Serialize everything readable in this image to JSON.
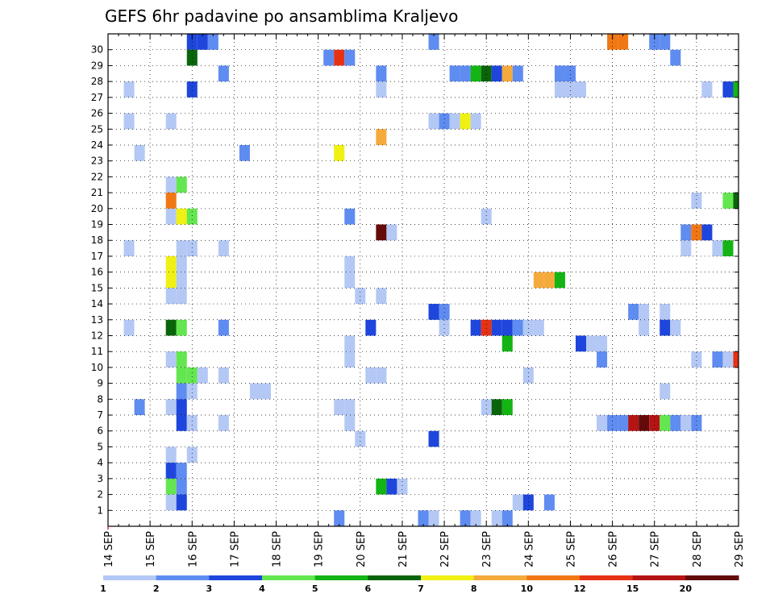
{
  "chart_data": {
    "type": "heatmap",
    "title": "GEFS 6hr padavine po ansamblima Kraljevo",
    "xlabel": "",
    "ylabel": "",
    "x_tick_labels": [
      "14 SEP",
      "15 SEP",
      "16 SEP",
      "17 SEP",
      "18 SEP",
      "19 SEP",
      "20 SEP",
      "21 SEP",
      "22 SEP",
      "23 SEP",
      "24 SEP",
      "25 SEP",
      "26 SEP",
      "27 SEP",
      "28 SEP",
      "29 SEP"
    ],
    "y_tick_labels": [
      "1",
      "2",
      "3",
      "4",
      "5",
      "6",
      "7",
      "8",
      "9",
      "10",
      "11",
      "12",
      "13",
      "14",
      "15",
      "16",
      "17",
      "18",
      "19",
      "20",
      "21",
      "22",
      "23",
      "24",
      "25",
      "26",
      "27",
      "28",
      "29",
      "30"
    ],
    "ylim": [
      0,
      30
    ],
    "time_step_hours": 6,
    "grid": true,
    "colorbar": {
      "labels": [
        "1",
        "2",
        "3",
        "4",
        "5",
        "6",
        "7",
        "8",
        "10",
        "12",
        "15",
        "20"
      ],
      "bins": [
        {
          "from": 1,
          "to": 2,
          "color": "#b4c8f5"
        },
        {
          "from": 2,
          "to": 3,
          "color": "#5f8cf0"
        },
        {
          "from": 3,
          "to": 4,
          "color": "#1e46dc"
        },
        {
          "from": 4,
          "to": 5,
          "color": "#64e650"
        },
        {
          "from": 5,
          "to": 6,
          "color": "#14b414"
        },
        {
          "from": 6,
          "to": 7,
          "color": "#0a640a"
        },
        {
          "from": 7,
          "to": 8,
          "color": "#f0f014"
        },
        {
          "from": 8,
          "to": 10,
          "color": "#f5aa3c"
        },
        {
          "from": 10,
          "to": 12,
          "color": "#f07814"
        },
        {
          "from": 12,
          "to": 15,
          "color": "#e63214"
        },
        {
          "from": 15,
          "to": 20,
          "color": "#b41414"
        },
        {
          "from": 20,
          "to": 25,
          "color": "#640a0a"
        }
      ]
    },
    "cells": [
      {
        "member": 30,
        "step": 8,
        "bin": 2
      },
      {
        "member": 30,
        "step": 9,
        "bin": 2
      },
      {
        "member": 30,
        "step": 10,
        "bin": 1
      },
      {
        "member": 30,
        "step": 31,
        "bin": 1
      },
      {
        "member": 30,
        "step": 48,
        "bin": 8
      },
      {
        "member": 30,
        "step": 49,
        "bin": 8
      },
      {
        "member": 30,
        "step": 52,
        "bin": 1
      },
      {
        "member": 30,
        "step": 53,
        "bin": 1
      },
      {
        "member": 29,
        "step": 8,
        "bin": 5
      },
      {
        "member": 29,
        "step": 21,
        "bin": 1
      },
      {
        "member": 29,
        "step": 22,
        "bin": 9
      },
      {
        "member": 29,
        "step": 23,
        "bin": 1
      },
      {
        "member": 29,
        "step": 54,
        "bin": 1
      },
      {
        "member": 28,
        "step": 11,
        "bin": 1
      },
      {
        "member": 28,
        "step": 26,
        "bin": 1
      },
      {
        "member": 28,
        "step": 33,
        "bin": 1
      },
      {
        "member": 28,
        "step": 34,
        "bin": 1
      },
      {
        "member": 28,
        "step": 35,
        "bin": 4
      },
      {
        "member": 28,
        "step": 36,
        "bin": 5
      },
      {
        "member": 28,
        "step": 37,
        "bin": 2
      },
      {
        "member": 28,
        "step": 38,
        "bin": 7
      },
      {
        "member": 28,
        "step": 39,
        "bin": 1
      },
      {
        "member": 28,
        "step": 43,
        "bin": 1
      },
      {
        "member": 28,
        "step": 44,
        "bin": 1
      },
      {
        "member": 27,
        "step": 2,
        "bin": 0
      },
      {
        "member": 27,
        "step": 8,
        "bin": 2
      },
      {
        "member": 27,
        "step": 26,
        "bin": 0
      },
      {
        "member": 27,
        "step": 43,
        "bin": 0
      },
      {
        "member": 27,
        "step": 44,
        "bin": 0
      },
      {
        "member": 27,
        "step": 45,
        "bin": 0
      },
      {
        "member": 27,
        "step": 57,
        "bin": 0
      },
      {
        "member": 27,
        "step": 59,
        "bin": 2
      },
      {
        "member": 27,
        "step": 60,
        "bin": 4
      },
      {
        "member": 25,
        "step": 2,
        "bin": 0
      },
      {
        "member": 25,
        "step": 6,
        "bin": 0
      },
      {
        "member": 25,
        "step": 31,
        "bin": 0
      },
      {
        "member": 25,
        "step": 32,
        "bin": 1
      },
      {
        "member": 25,
        "step": 33,
        "bin": 0
      },
      {
        "member": 25,
        "step": 34,
        "bin": 6
      },
      {
        "member": 25,
        "step": 35,
        "bin": 0
      },
      {
        "member": 24,
        "step": 26,
        "bin": 7
      },
      {
        "member": 23,
        "step": 3,
        "bin": 0
      },
      {
        "member": 23,
        "step": 13,
        "bin": 1
      },
      {
        "member": 23,
        "step": 22,
        "bin": 6
      },
      {
        "member": 21,
        "step": 6,
        "bin": 0
      },
      {
        "member": 21,
        "step": 7,
        "bin": 3
      },
      {
        "member": 20,
        "step": 6,
        "bin": 8
      },
      {
        "member": 20,
        "step": 56,
        "bin": 0
      },
      {
        "member": 20,
        "step": 59,
        "bin": 3
      },
      {
        "member": 20,
        "step": 60,
        "bin": 5
      },
      {
        "member": 19,
        "step": 6,
        "bin": 0
      },
      {
        "member": 19,
        "step": 7,
        "bin": 6
      },
      {
        "member": 19,
        "step": 8,
        "bin": 3
      },
      {
        "member": 19,
        "step": 23,
        "bin": 1
      },
      {
        "member": 19,
        "step": 36,
        "bin": 0
      },
      {
        "member": 18,
        "step": 26,
        "bin": 11
      },
      {
        "member": 18,
        "step": 27,
        "bin": 0
      },
      {
        "member": 18,
        "step": 55,
        "bin": 1
      },
      {
        "member": 18,
        "step": 56,
        "bin": 8
      },
      {
        "member": 18,
        "step": 57,
        "bin": 2
      },
      {
        "member": 17,
        "step": 2,
        "bin": 0
      },
      {
        "member": 17,
        "step": 7,
        "bin": 0
      },
      {
        "member": 17,
        "step": 8,
        "bin": 0
      },
      {
        "member": 17,
        "step": 11,
        "bin": 0
      },
      {
        "member": 17,
        "step": 55,
        "bin": 0
      },
      {
        "member": 17,
        "step": 58,
        "bin": 0
      },
      {
        "member": 17,
        "step": 59,
        "bin": 4
      },
      {
        "member": 16,
        "step": 6,
        "bin": 6
      },
      {
        "member": 16,
        "step": 7,
        "bin": 0
      },
      {
        "member": 16,
        "step": 23,
        "bin": 0
      },
      {
        "member": 15,
        "step": 6,
        "bin": 6
      },
      {
        "member": 15,
        "step": 7,
        "bin": 0
      },
      {
        "member": 15,
        "step": 23,
        "bin": 0
      },
      {
        "member": 15,
        "step": 41,
        "bin": 7
      },
      {
        "member": 15,
        "step": 42,
        "bin": 7
      },
      {
        "member": 15,
        "step": 43,
        "bin": 4
      },
      {
        "member": 14,
        "step": 6,
        "bin": 0
      },
      {
        "member": 14,
        "step": 7,
        "bin": 0
      },
      {
        "member": 14,
        "step": 24,
        "bin": 0
      },
      {
        "member": 14,
        "step": 26,
        "bin": 0
      },
      {
        "member": 13,
        "step": 31,
        "bin": 2
      },
      {
        "member": 13,
        "step": 32,
        "bin": 1
      },
      {
        "member": 13,
        "step": 50,
        "bin": 1
      },
      {
        "member": 13,
        "step": 51,
        "bin": 0
      },
      {
        "member": 13,
        "step": 53,
        "bin": 0
      },
      {
        "member": 12,
        "step": 2,
        "bin": 0
      },
      {
        "member": 12,
        "step": 6,
        "bin": 5
      },
      {
        "member": 12,
        "step": 7,
        "bin": 3
      },
      {
        "member": 12,
        "step": 11,
        "bin": 1
      },
      {
        "member": 12,
        "step": 25,
        "bin": 2
      },
      {
        "member": 12,
        "step": 32,
        "bin": 0
      },
      {
        "member": 12,
        "step": 35,
        "bin": 2
      },
      {
        "member": 12,
        "step": 36,
        "bin": 9
      },
      {
        "member": 12,
        "step": 37,
        "bin": 2
      },
      {
        "member": 12,
        "step": 38,
        "bin": 2
      },
      {
        "member": 12,
        "step": 39,
        "bin": 1
      },
      {
        "member": 12,
        "step": 40,
        "bin": 0
      },
      {
        "member": 12,
        "step": 41,
        "bin": 0
      },
      {
        "member": 12,
        "step": 51,
        "bin": 0
      },
      {
        "member": 12,
        "step": 53,
        "bin": 2
      },
      {
        "member": 12,
        "step": 54,
        "bin": 0
      },
      {
        "member": 11,
        "step": 23,
        "bin": 0
      },
      {
        "member": 11,
        "step": 38,
        "bin": 4
      },
      {
        "member": 11,
        "step": 45,
        "bin": 2
      },
      {
        "member": 11,
        "step": 46,
        "bin": 0
      },
      {
        "member": 11,
        "step": 47,
        "bin": 0
      },
      {
        "member": 10,
        "step": 6,
        "bin": 0
      },
      {
        "member": 10,
        "step": 7,
        "bin": 3
      },
      {
        "member": 10,
        "step": 23,
        "bin": 0
      },
      {
        "member": 10,
        "step": 47,
        "bin": 1
      },
      {
        "member": 10,
        "step": 56,
        "bin": 0
      },
      {
        "member": 10,
        "step": 58,
        "bin": 1
      },
      {
        "member": 10,
        "step": 59,
        "bin": 0
      },
      {
        "member": 10,
        "step": 60,
        "bin": 9
      },
      {
        "member": 9,
        "step": 7,
        "bin": 3
      },
      {
        "member": 9,
        "step": 8,
        "bin": 3
      },
      {
        "member": 9,
        "step": 9,
        "bin": 0
      },
      {
        "member": 9,
        "step": 11,
        "bin": 0
      },
      {
        "member": 9,
        "step": 25,
        "bin": 0
      },
      {
        "member": 9,
        "step": 26,
        "bin": 0
      },
      {
        "member": 9,
        "step": 40,
        "bin": 0
      },
      {
        "member": 8,
        "step": 7,
        "bin": 1
      },
      {
        "member": 8,
        "step": 8,
        "bin": 0
      },
      {
        "member": 8,
        "step": 14,
        "bin": 0
      },
      {
        "member": 8,
        "step": 15,
        "bin": 0
      },
      {
        "member": 8,
        "step": 53,
        "bin": 0
      },
      {
        "member": 7,
        "step": 3,
        "bin": 1
      },
      {
        "member": 7,
        "step": 6,
        "bin": 0
      },
      {
        "member": 7,
        "step": 7,
        "bin": 2
      },
      {
        "member": 7,
        "step": 22,
        "bin": 0
      },
      {
        "member": 7,
        "step": 23,
        "bin": 0
      },
      {
        "member": 7,
        "step": 36,
        "bin": 0
      },
      {
        "member": 7,
        "step": 37,
        "bin": 5
      },
      {
        "member": 7,
        "step": 38,
        "bin": 4
      },
      {
        "member": 6,
        "step": 7,
        "bin": 2
      },
      {
        "member": 6,
        "step": 8,
        "bin": 0
      },
      {
        "member": 6,
        "step": 11,
        "bin": 0
      },
      {
        "member": 6,
        "step": 23,
        "bin": 0
      },
      {
        "member": 6,
        "step": 47,
        "bin": 0
      },
      {
        "member": 6,
        "step": 48,
        "bin": 1
      },
      {
        "member": 6,
        "step": 49,
        "bin": 1
      },
      {
        "member": 6,
        "step": 50,
        "bin": 10
      },
      {
        "member": 6,
        "step": 51,
        "bin": 11
      },
      {
        "member": 6,
        "step": 52,
        "bin": 10
      },
      {
        "member": 6,
        "step": 53,
        "bin": 3
      },
      {
        "member": 6,
        "step": 54,
        "bin": 1
      },
      {
        "member": 6,
        "step": 55,
        "bin": 0
      },
      {
        "member": 6,
        "step": 56,
        "bin": 1
      },
      {
        "member": 5,
        "step": 24,
        "bin": 0
      },
      {
        "member": 5,
        "step": 31,
        "bin": 2
      },
      {
        "member": 4,
        "step": 6,
        "bin": 0
      },
      {
        "member": 4,
        "step": 8,
        "bin": 0
      },
      {
        "member": 3,
        "step": 6,
        "bin": 2
      },
      {
        "member": 3,
        "step": 7,
        "bin": 1
      },
      {
        "member": 2,
        "step": 6,
        "bin": 3
      },
      {
        "member": 2,
        "step": 7,
        "bin": 1
      },
      {
        "member": 2,
        "step": 26,
        "bin": 4
      },
      {
        "member": 2,
        "step": 27,
        "bin": 2
      },
      {
        "member": 2,
        "step": 28,
        "bin": 0
      },
      {
        "member": 1,
        "step": 6,
        "bin": 0
      },
      {
        "member": 1,
        "step": 7,
        "bin": 2
      },
      {
        "member": 1,
        "step": 39,
        "bin": 0
      },
      {
        "member": 1,
        "step": 40,
        "bin": 2
      },
      {
        "member": 1,
        "step": 42,
        "bin": 1
      },
      {
        "member": 0,
        "step": 22,
        "bin": 1
      },
      {
        "member": 0,
        "step": 30,
        "bin": 1
      },
      {
        "member": 0,
        "step": 31,
        "bin": 0
      },
      {
        "member": 0,
        "step": 34,
        "bin": 1
      },
      {
        "member": 0,
        "step": 35,
        "bin": 0
      },
      {
        "member": 0,
        "step": 37,
        "bin": 0
      },
      {
        "member": 0,
        "step": 38,
        "bin": 1
      }
    ]
  }
}
